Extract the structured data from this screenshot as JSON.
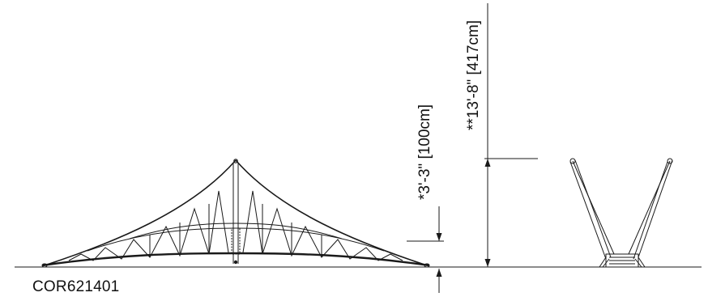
{
  "drawing": {
    "product_code": "COR621401",
    "dimensions": [
      {
        "label": "*3'-3\" [100cm]"
      },
      {
        "label": "**13'-8\" [417cm]"
      }
    ]
  },
  "colors": {
    "line": "#1a1a1a",
    "background": "#ffffff"
  }
}
